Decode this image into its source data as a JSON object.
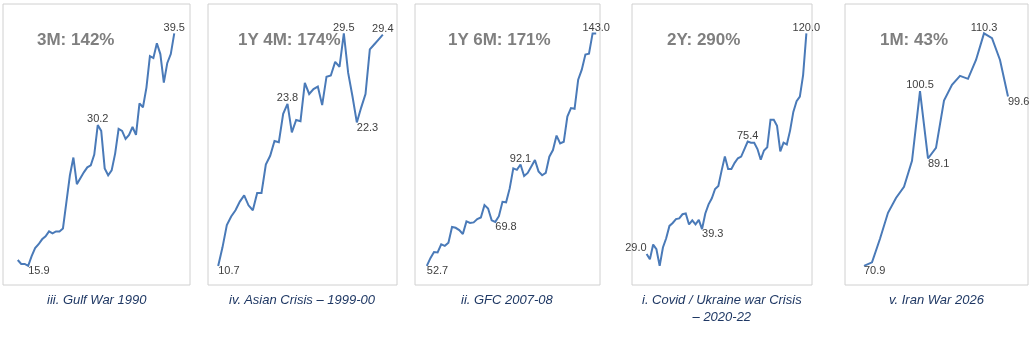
{
  "chart_data": [
    {
      "type": "line",
      "title": "iii. Gulf War 1990",
      "subtitle": "3M: 142%",
      "categories": [
        null,
        null,
        null,
        null,
        null,
        null,
        null,
        null,
        null,
        null,
        null,
        null,
        null,
        null,
        null,
        null,
        null,
        null,
        null,
        null,
        null,
        null,
        null,
        null,
        null,
        null,
        null,
        null,
        null,
        null,
        null,
        null,
        null,
        null,
        null,
        null,
        null,
        null,
        null,
        null,
        null,
        null,
        null,
        null,
        null,
        null
      ],
      "series": [
        {
          "color": "#4a7ab8",
          "values": [
            16.5,
            16.1,
            16.1,
            15.9,
            16.9,
            17.7,
            18.1,
            18.6,
            18.9,
            19.4,
            19.2,
            19.4,
            19.4,
            19.7,
            22.4,
            25.1,
            26.9,
            24.2,
            24.8,
            25.4,
            25.9,
            26.1,
            27.2,
            30.2,
            29.6,
            25.8,
            25.1,
            25.6,
            27.3,
            29.8,
            29.6,
            28.8,
            29.2,
            30.0,
            29.2,
            32.4,
            32.0,
            34.0,
            37.2,
            37.0,
            38.5,
            37.4,
            34.5,
            36.5,
            37.4,
            39.5
          ],
          "value_labels": [
            null,
            null,
            null,
            "15.9",
            null,
            null,
            null,
            null,
            null,
            null,
            null,
            null,
            null,
            null,
            null,
            null,
            null,
            null,
            null,
            null,
            null,
            null,
            null,
            "30.2",
            null,
            null,
            null,
            null,
            null,
            null,
            null,
            null,
            null,
            null,
            null,
            null,
            null,
            null,
            null,
            null,
            null,
            null,
            null,
            null,
            null,
            "39.5"
          ]
        }
      ]
    },
    {
      "type": "line",
      "title": "iv. Asian Crisis – 1999-00",
      "subtitle": "1Y 4M: 174%",
      "categories": [
        null,
        null,
        null,
        null,
        null,
        null,
        null,
        null,
        null,
        null,
        null,
        null,
        null,
        null,
        null,
        null,
        null,
        null,
        null,
        null,
        null,
        null,
        null,
        null,
        null,
        null,
        null,
        null,
        null,
        null,
        null,
        null,
        null,
        null,
        null,
        null,
        null,
        null,
        null
      ],
      "series": [
        {
          "color": "#4a7ab8",
          "values": [
            10.7,
            12.2,
            14.0,
            14.7,
            15.2,
            15.9,
            16.4,
            15.6,
            15.2,
            16.6,
            16.6,
            18.9,
            19.6,
            20.8,
            20.7,
            23.0,
            23.8,
            21.5,
            22.5,
            22.4,
            25.5,
            24.6,
            25.0,
            25.2,
            23.7,
            26.0,
            26.1,
            27.2,
            26.8,
            29.5,
            26.3,
            24.4,
            22.3,
            23.5,
            24.6,
            28.2,
            28.6,
            29.0,
            29.4
          ],
          "value_labels": [
            "10.7",
            null,
            null,
            null,
            null,
            null,
            null,
            null,
            null,
            null,
            null,
            null,
            null,
            null,
            null,
            null,
            "23.8",
            null,
            null,
            null,
            null,
            null,
            null,
            null,
            null,
            null,
            null,
            null,
            null,
            "29.5",
            null,
            null,
            "22.3",
            null,
            null,
            null,
            null,
            null,
            "29.4"
          ]
        }
      ]
    },
    {
      "type": "line",
      "title": "ii. GFC 2007-08",
      "subtitle": "1Y 6M: 171%",
      "categories": [
        null,
        null,
        null,
        null,
        null,
        null,
        null,
        null,
        null,
        null,
        null,
        null,
        null,
        null,
        null,
        null,
        null,
        null,
        null,
        null,
        null,
        null,
        null,
        null,
        null,
        null,
        null,
        null,
        null,
        null,
        null,
        null,
        null,
        null,
        null,
        null,
        null,
        null,
        null,
        null,
        null,
        null,
        null,
        null,
        null,
        null,
        null,
        null
      ],
      "series": [
        {
          "color": "#4a7ab8",
          "values": [
            52.7,
            55.7,
            58.1,
            57.9,
            61.1,
            60.5,
            61.7,
            67.8,
            67.5,
            66.6,
            65.1,
            70.0,
            69.4,
            69.6,
            70.9,
            71.5,
            76.3,
            75.0,
            70.4,
            69.8,
            72.0,
            77.6,
            77.4,
            82.8,
            90.6,
            90.0,
            92.1,
            87.6,
            88.8,
            91.3,
            93.8,
            89.4,
            87.9,
            88.8,
            95.1,
            97.7,
            103.3,
            100.3,
            100.9,
            110.7,
            114.0,
            113.7,
            125.0,
            128.9,
            134.8,
            135.1,
            143.0,
            143.0
          ],
          "value_labels": [
            "52.7",
            null,
            null,
            null,
            null,
            null,
            null,
            null,
            null,
            null,
            null,
            null,
            null,
            null,
            null,
            null,
            null,
            null,
            null,
            "69.8",
            null,
            null,
            null,
            null,
            null,
            null,
            "92.1",
            null,
            null,
            null,
            null,
            null,
            null,
            null,
            null,
            null,
            null,
            null,
            null,
            null,
            null,
            null,
            null,
            null,
            null,
            null,
            null,
            "143.0"
          ]
        }
      ]
    },
    {
      "type": "line",
      "title": "i. Covid / Ukraine war Crisis – 2020-22",
      "subtitle": "2Y: 290%",
      "categories": [
        null,
        null,
        null,
        null,
        null,
        null,
        null,
        null,
        null,
        null,
        null,
        null,
        null,
        null,
        null,
        null,
        null,
        null,
        null,
        null,
        null,
        null,
        null,
        null,
        null,
        null,
        null,
        null,
        null,
        null,
        null,
        null,
        null,
        null,
        null,
        null,
        null,
        null,
        null,
        null,
        null,
        null,
        null,
        null,
        null,
        null,
        null,
        null,
        null,
        null
      ],
      "series": [
        {
          "color": "#4a7ab8",
          "values": [
            29.0,
            26.8,
            32.9,
            31.0,
            24.1,
            31.7,
            35.5,
            40.6,
            41.8,
            43.4,
            43.7,
            45.4,
            45.7,
            41.2,
            42.9,
            41.2,
            43.1,
            39.3,
            45.7,
            49.5,
            52.0,
            55.8,
            57.1,
            63.4,
            69.2,
            64.1,
            64.1,
            66.6,
            68.5,
            69.2,
            72.3,
            75.4,
            74.9,
            74.9,
            72.3,
            67.9,
            71.7,
            73.0,
            84.4,
            84.4,
            81.9,
            71.3,
            74.9,
            74.2,
            79.9,
            87.6,
            92.0,
            93.9,
            102.8,
            120.0
          ],
          "value_labels": [
            "29.0",
            null,
            null,
            null,
            null,
            null,
            null,
            null,
            null,
            null,
            null,
            null,
            null,
            null,
            null,
            null,
            null,
            "39.3",
            null,
            null,
            null,
            null,
            null,
            null,
            null,
            null,
            null,
            null,
            null,
            null,
            null,
            "75.4",
            null,
            null,
            null,
            null,
            null,
            null,
            null,
            null,
            null,
            null,
            null,
            null,
            null,
            null,
            null,
            null,
            null,
            "120.0"
          ]
        }
      ]
    },
    {
      "type": "line",
      "title": "v. Iran War 2026",
      "subtitle": "1M: 43%",
      "categories": [
        null,
        null,
        null,
        null,
        null,
        null,
        null,
        null,
        null,
        null,
        null,
        null,
        null,
        null,
        null,
        null,
        null,
        null,
        null
      ],
      "series": [
        {
          "color": "#4a7ab8",
          "values": [
            70.9,
            71.5,
            75.5,
            79.9,
            82.4,
            84.3,
            88.7,
            100.5,
            89.1,
            90.9,
            98.9,
            101.6,
            103.1,
            102.6,
            105.8,
            110.3,
            109.5,
            105.8,
            99.6
          ],
          "value_labels": [
            "70.9",
            null,
            null,
            null,
            null,
            null,
            null,
            "100.5",
            "89.1",
            null,
            null,
            null,
            null,
            null,
            null,
            "110.3",
            null,
            null,
            "99.6"
          ]
        }
      ]
    }
  ]
}
